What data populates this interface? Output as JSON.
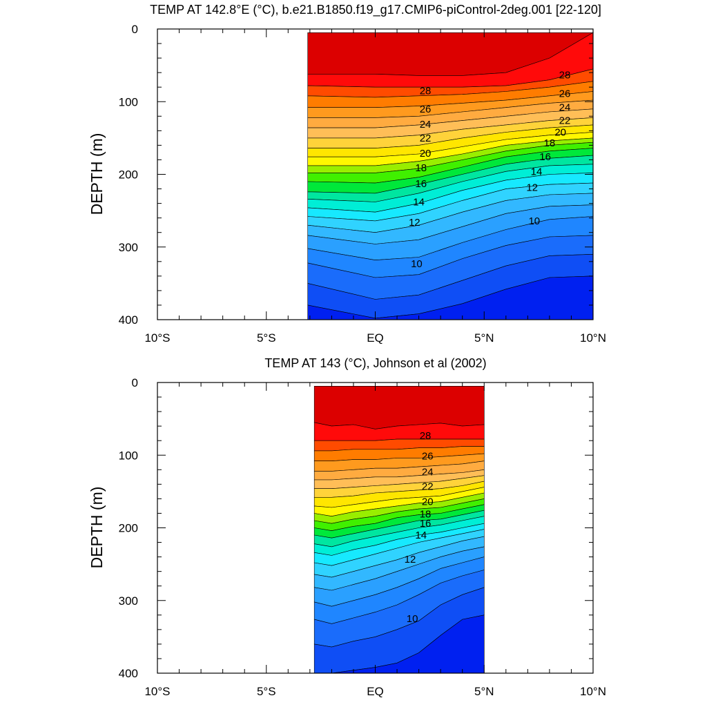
{
  "chart_data": [
    {
      "type": "contour",
      "title": "TEMP AT 142.8°E (°C), b.e21.B1850.f19_g17.CMIP6-piControl-2deg.001 [22-120]",
      "ylabel": "DEPTH (m)",
      "xlim": [
        -10,
        10
      ],
      "ylim": [
        0,
        400
      ],
      "y_reversed": true,
      "x_tick_values": [
        -10,
        -5,
        0,
        5,
        10
      ],
      "x_tick_labels": [
        "10°S",
        "5°S",
        "EQ",
        "5°N",
        "10°N"
      ],
      "y_tick_values": [
        0,
        100,
        200,
        300,
        400
      ],
      "y_tick_labels": [
        "0",
        "100",
        "200",
        "300",
        "400"
      ],
      "data_extent": {
        "x": [
          -3.1,
          10
        ],
        "y": [
          5,
          400
        ]
      },
      "contour_interval": 1,
      "x_nodes": [
        -3.1,
        0,
        2,
        4,
        6,
        8,
        10
      ],
      "isotherms": [
        {
          "value": 29,
          "depths": [
            62,
            62,
            64,
            64,
            60,
            40,
            5
          ]
        },
        {
          "value": 28,
          "depths": [
            78,
            80,
            80,
            80,
            78,
            70,
            55
          ]
        },
        {
          "value": 27,
          "depths": [
            92,
            94,
            92,
            90,
            86,
            80,
            72
          ]
        },
        {
          "value": 26,
          "depths": [
            108,
            108,
            106,
            102,
            98,
            92,
            86
          ]
        },
        {
          "value": 25,
          "depths": [
            122,
            122,
            120,
            114,
            108,
            102,
            98
          ]
        },
        {
          "value": 24,
          "depths": [
            136,
            136,
            132,
            126,
            120,
            114,
            110
          ]
        },
        {
          "value": 23,
          "depths": [
            150,
            150,
            146,
            138,
            132,
            126,
            122
          ]
        },
        {
          "value": 22,
          "depths": [
            164,
            164,
            160,
            150,
            142,
            136,
            132
          ]
        },
        {
          "value": 21,
          "depths": [
            176,
            176,
            172,
            162,
            152,
            146,
            142
          ]
        },
        {
          "value": 20,
          "depths": [
            188,
            188,
            182,
            172,
            160,
            154,
            150
          ]
        },
        {
          "value": 19,
          "depths": [
            198,
            198,
            192,
            180,
            168,
            160,
            156
          ]
        },
        {
          "value": 18,
          "depths": [
            210,
            212,
            204,
            190,
            176,
            168,
            164
          ]
        },
        {
          "value": 17,
          "depths": [
            224,
            226,
            214,
            200,
            186,
            178,
            174
          ]
        },
        {
          "value": 16,
          "depths": [
            234,
            238,
            226,
            210,
            196,
            188,
            186
          ]
        },
        {
          "value": 15,
          "depths": [
            246,
            252,
            240,
            222,
            208,
            200,
            198
          ]
        },
        {
          "value": 14,
          "depths": [
            258,
            264,
            254,
            236,
            220,
            214,
            212
          ]
        },
        {
          "value": 13,
          "depths": [
            270,
            280,
            270,
            252,
            236,
            228,
            226
          ]
        },
        {
          "value": 12,
          "depths": [
            284,
            296,
            290,
            272,
            254,
            244,
            242
          ]
        },
        {
          "value": 11,
          "depths": [
            302,
            318,
            314,
            294,
            276,
            262,
            258
          ]
        },
        {
          "value": 10,
          "depths": [
            322,
            342,
            338,
            316,
            298,
            286,
            284
          ]
        },
        {
          "value": 9,
          "depths": [
            350,
            372,
            366,
            346,
            326,
            312,
            310
          ]
        },
        {
          "value": 8,
          "depths": [
            380,
            398,
            392,
            378,
            358,
            342,
            340
          ]
        }
      ],
      "contour_labels": [
        {
          "text": "28",
          "x": 2.3,
          "y": 85
        },
        {
          "text": "26",
          "x": 2.3,
          "y": 110
        },
        {
          "text": "24",
          "x": 2.3,
          "y": 131
        },
        {
          "text": "22",
          "x": 2.3,
          "y": 150
        },
        {
          "text": "20",
          "x": 2.3,
          "y": 171
        },
        {
          "text": "18",
          "x": 2.1,
          "y": 191
        },
        {
          "text": "16",
          "x": 2.1,
          "y": 213
        },
        {
          "text": "14",
          "x": 2.0,
          "y": 238
        },
        {
          "text": "12",
          "x": 1.8,
          "y": 266
        },
        {
          "text": "10",
          "x": 1.9,
          "y": 323
        },
        {
          "text": "28",
          "x": 8.7,
          "y": 63
        },
        {
          "text": "26",
          "x": 8.7,
          "y": 89
        },
        {
          "text": "24",
          "x": 8.7,
          "y": 108
        },
        {
          "text": "22",
          "x": 8.7,
          "y": 126
        },
        {
          "text": "20",
          "x": 8.5,
          "y": 142
        },
        {
          "text": "18",
          "x": 8.0,
          "y": 157
        },
        {
          "text": "16",
          "x": 7.8,
          "y": 176
        },
        {
          "text": "14",
          "x": 7.4,
          "y": 196
        },
        {
          "text": "12",
          "x": 7.2,
          "y": 218
        },
        {
          "text": "10",
          "x": 7.3,
          "y": 264
        }
      ]
    },
    {
      "type": "contour",
      "title": "TEMP AT 143 (°C), Johnson et al (2002)",
      "ylabel": "DEPTH (m)",
      "xlim": [
        -10,
        10
      ],
      "ylim": [
        0,
        400
      ],
      "y_reversed": true,
      "x_tick_values": [
        -10,
        -5,
        0,
        5,
        10
      ],
      "x_tick_labels": [
        "10°S",
        "5°S",
        "EQ",
        "5°N",
        "10°N"
      ],
      "y_tick_values": [
        0,
        100,
        200,
        300,
        400
      ],
      "y_tick_labels": [
        "0",
        "100",
        "200",
        "300",
        "400"
      ],
      "data_extent": {
        "x": [
          -2.8,
          5
        ],
        "y": [
          5,
          400
        ]
      },
      "contour_interval": 1,
      "x_nodes": [
        -2.8,
        -2,
        -1,
        0,
        1,
        2,
        3,
        4,
        5
      ],
      "isotherms": [
        {
          "value": 29,
          "depths": [
            55,
            60,
            58,
            64,
            60,
            58,
            56,
            60,
            58
          ]
        },
        {
          "value": 28,
          "depths": [
            80,
            80,
            80,
            80,
            78,
            78,
            78,
            78,
            78
          ]
        },
        {
          "value": 27,
          "depths": [
            94,
            94,
            92,
            92,
            92,
            90,
            90,
            88,
            88
          ]
        },
        {
          "value": 26,
          "depths": [
            108,
            108,
            106,
            106,
            104,
            104,
            102,
            100,
            98
          ]
        },
        {
          "value": 25,
          "depths": [
            122,
            122,
            120,
            118,
            118,
            116,
            114,
            112,
            108
          ]
        },
        {
          "value": 24,
          "depths": [
            134,
            134,
            132,
            130,
            130,
            128,
            126,
            124,
            120
          ]
        },
        {
          "value": 23,
          "depths": [
            146,
            146,
            144,
            142,
            140,
            138,
            136,
            132,
            128
          ]
        },
        {
          "value": 22,
          "depths": [
            158,
            158,
            156,
            152,
            150,
            148,
            146,
            142,
            136
          ]
        },
        {
          "value": 21,
          "depths": [
            170,
            172,
            168,
            164,
            160,
            158,
            156,
            150,
            144
          ]
        },
        {
          "value": 20,
          "depths": [
            180,
            184,
            178,
            174,
            170,
            166,
            164,
            158,
            152
          ]
        },
        {
          "value": 19,
          "depths": [
            190,
            194,
            188,
            184,
            178,
            174,
            172,
            166,
            160
          ]
        },
        {
          "value": 18,
          "depths": [
            200,
            204,
            198,
            194,
            186,
            182,
            180,
            174,
            168
          ]
        },
        {
          "value": 17,
          "depths": [
            210,
            214,
            208,
            202,
            196,
            190,
            188,
            182,
            176
          ]
        },
        {
          "value": 16,
          "depths": [
            222,
            226,
            218,
            212,
            206,
            200,
            196,
            190,
            184
          ]
        },
        {
          "value": 15,
          "depths": [
            234,
            238,
            230,
            224,
            216,
            210,
            206,
            200,
            194
          ]
        },
        {
          "value": 14,
          "depths": [
            248,
            252,
            244,
            236,
            228,
            220,
            214,
            208,
            202
          ]
        },
        {
          "value": 13,
          "depths": [
            264,
            268,
            260,
            252,
            244,
            234,
            226,
            218,
            212
          ]
        },
        {
          "value": 12,
          "depths": [
            282,
            286,
            278,
            270,
            260,
            250,
            240,
            232,
            226
          ]
        },
        {
          "value": 11,
          "depths": [
            302,
            308,
            300,
            292,
            282,
            270,
            256,
            248,
            240
          ]
        },
        {
          "value": 10,
          "depths": [
            326,
            332,
            324,
            316,
            306,
            292,
            276,
            266,
            258
          ]
        },
        {
          "value": 9,
          "depths": [
            360,
            364,
            356,
            350,
            340,
            328,
            306,
            292,
            282
          ]
        },
        {
          "value": 8,
          "depths": [
            400,
            400,
            396,
            392,
            386,
            372,
            348,
            326,
            320
          ]
        }
      ],
      "contour_labels": [
        {
          "text": "28",
          "x": 2.3,
          "y": 73
        },
        {
          "text": "26",
          "x": 2.4,
          "y": 101
        },
        {
          "text": "24",
          "x": 2.4,
          "y": 123
        },
        {
          "text": "22",
          "x": 2.4,
          "y": 143
        },
        {
          "text": "20",
          "x": 2.4,
          "y": 164
        },
        {
          "text": "18",
          "x": 2.3,
          "y": 181
        },
        {
          "text": "16",
          "x": 2.3,
          "y": 194
        },
        {
          "text": "14",
          "x": 2.1,
          "y": 210
        },
        {
          "text": "12",
          "x": 1.6,
          "y": 243
        },
        {
          "text": "10",
          "x": 1.7,
          "y": 325
        }
      ]
    }
  ]
}
